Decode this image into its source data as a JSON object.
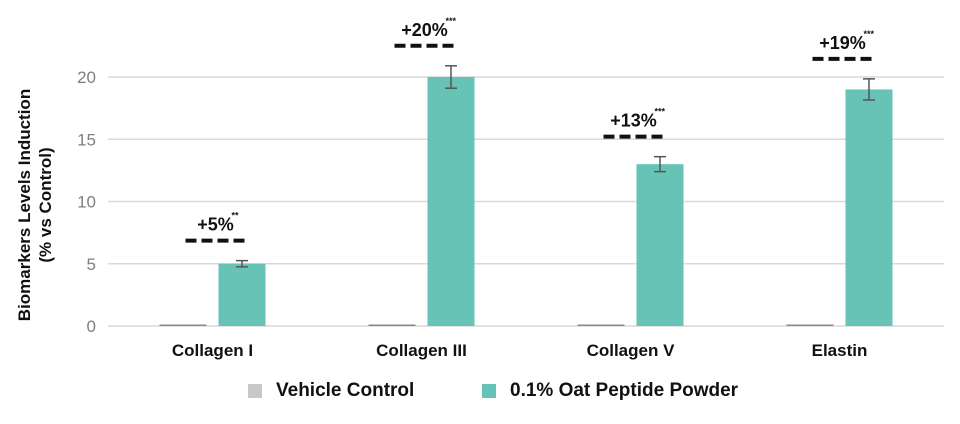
{
  "chart_data": {
    "type": "bar",
    "title": "",
    "xlabel": "",
    "ylabel": [
      "Biomarkers Levels Induction",
      "(% vs Control)"
    ],
    "ylim": [
      0,
      20
    ],
    "yticks": [
      0,
      5,
      10,
      15,
      20
    ],
    "grid": true,
    "legend_position": "bottom",
    "categories": [
      "Collagen I",
      "Collagen III",
      "Collagen V",
      "Elastin"
    ],
    "series": [
      {
        "name": "Vehicle Control",
        "color": "#c8c8c8",
        "values": [
          0,
          0,
          0,
          0
        ],
        "errors": [
          0,
          0,
          0,
          0
        ]
      },
      {
        "name": "0.1% Oat Peptide Powder",
        "color": "#66c3b5",
        "values": [
          5,
          20,
          13,
          19
        ],
        "errors": [
          0.25,
          0.9,
          0.6,
          0.85
        ]
      }
    ],
    "annotations": [
      {
        "category": "Collagen I",
        "text": "+5%",
        "significance": "**"
      },
      {
        "category": "Collagen III",
        "text": "+20%",
        "significance": "***"
      },
      {
        "category": "Collagen V",
        "text": "+13%",
        "significance": "***"
      },
      {
        "category": "Elastin",
        "text": "+19%",
        "significance": "***"
      }
    ]
  }
}
